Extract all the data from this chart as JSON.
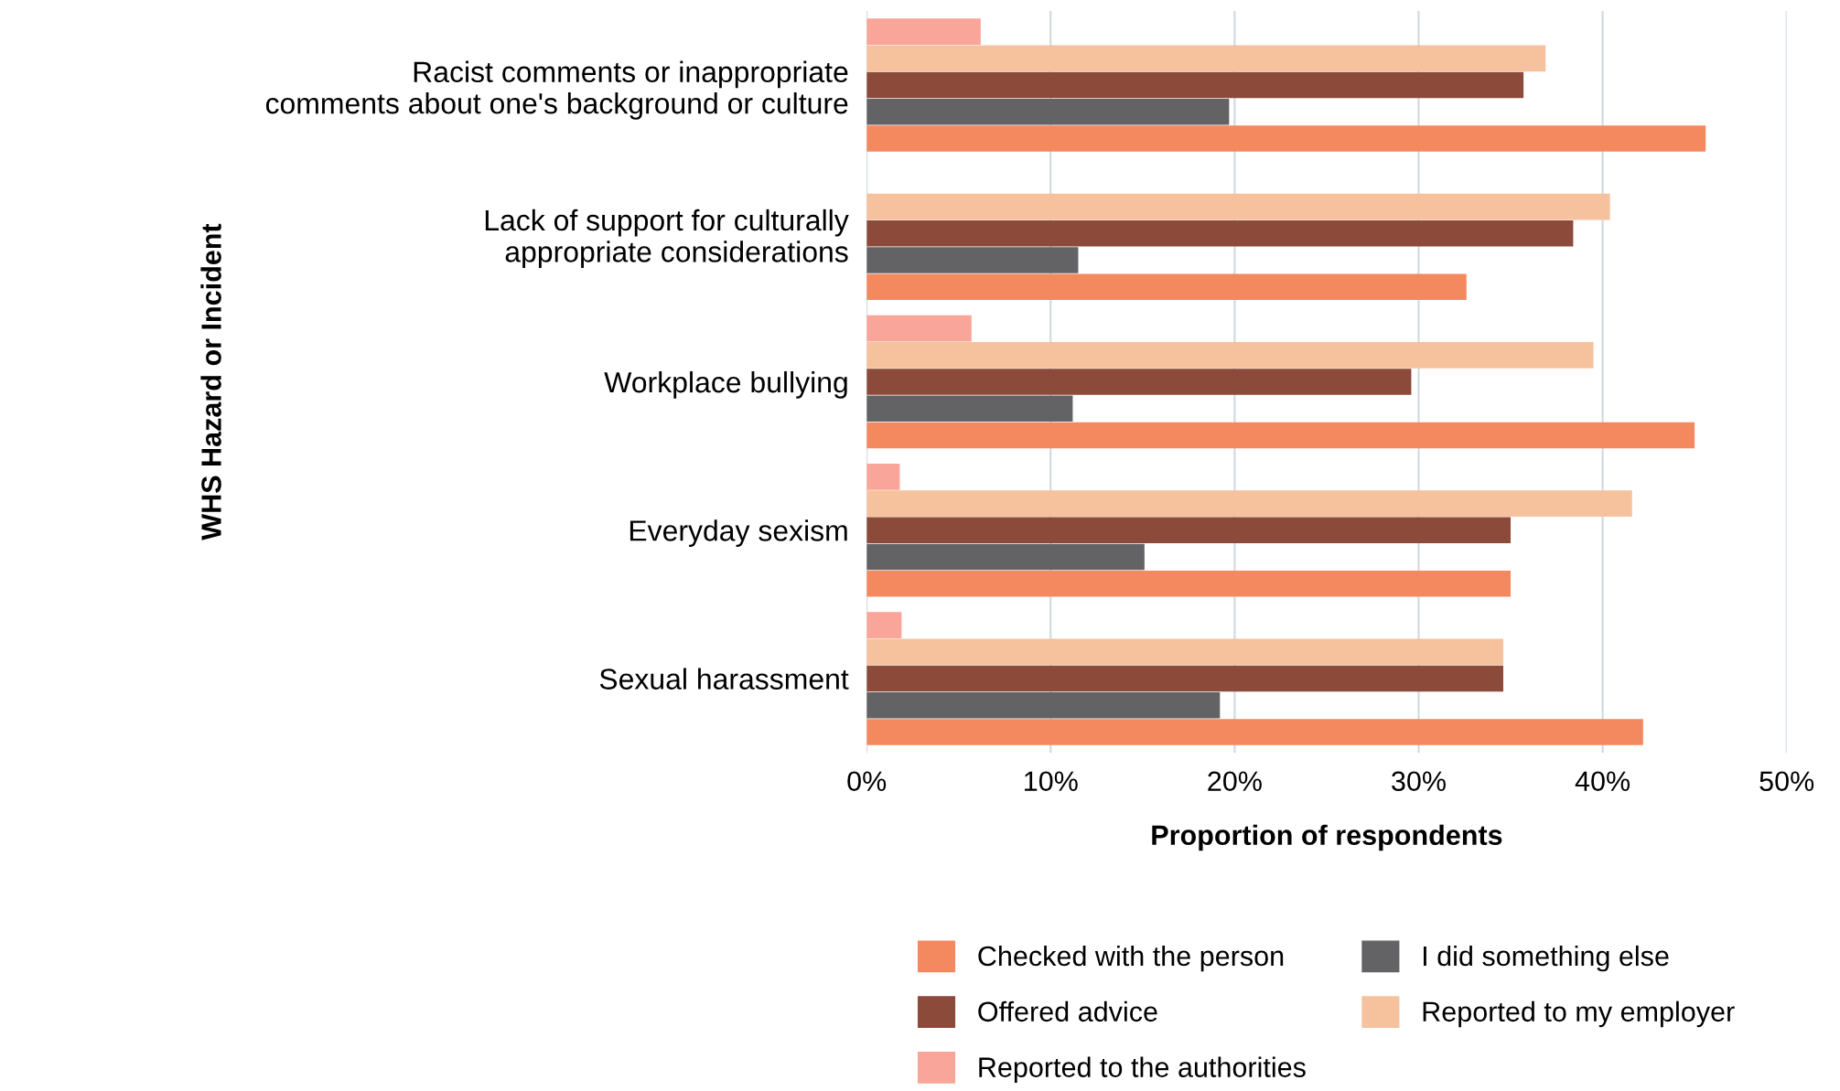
{
  "chart_data": {
    "type": "bar",
    "orientation": "horizontal",
    "xlabel": "Proportion of respondents",
    "ylabel": "WHS Hazard or Incident",
    "categories": [
      "Racist comments or inappropriate\ncomments about one's background or culture",
      "Lack of support for culturally\nappropriate considerations",
      "Workplace bullying",
      "Everyday sexism",
      "Sexual harassment"
    ],
    "series": [
      {
        "name": "Checked with the person",
        "color": "#f4895f",
        "values": [
          45.6,
          32.6,
          45.0,
          35.0,
          42.2
        ]
      },
      {
        "name": "I did something else",
        "color": "#636366",
        "values": [
          19.7,
          11.5,
          11.2,
          15.1,
          19.2
        ]
      },
      {
        "name": "Offered advice",
        "color": "#8b4a3a",
        "values": [
          35.7,
          38.4,
          29.6,
          35.0,
          34.6
        ]
      },
      {
        "name": "Reported to my employer",
        "color": "#f6c29e",
        "values": [
          36.9,
          40.4,
          39.5,
          41.6,
          34.6
        ]
      },
      {
        "name": "Reported to the authorities",
        "color": "#f9a59a",
        "values": [
          6.2,
          null,
          5.7,
          1.8,
          1.9
        ]
      }
    ],
    "xlim": [
      0,
      50
    ],
    "xticks": [
      {
        "value": 0,
        "label": "0%"
      },
      {
        "value": 10,
        "label": "10%"
      },
      {
        "value": 20,
        "label": "20%"
      },
      {
        "value": 30,
        "label": "30%"
      },
      {
        "value": 40,
        "label": "40%"
      },
      {
        "value": 50,
        "label": "50%"
      }
    ],
    "grid": "x",
    "legend": "bottom"
  }
}
